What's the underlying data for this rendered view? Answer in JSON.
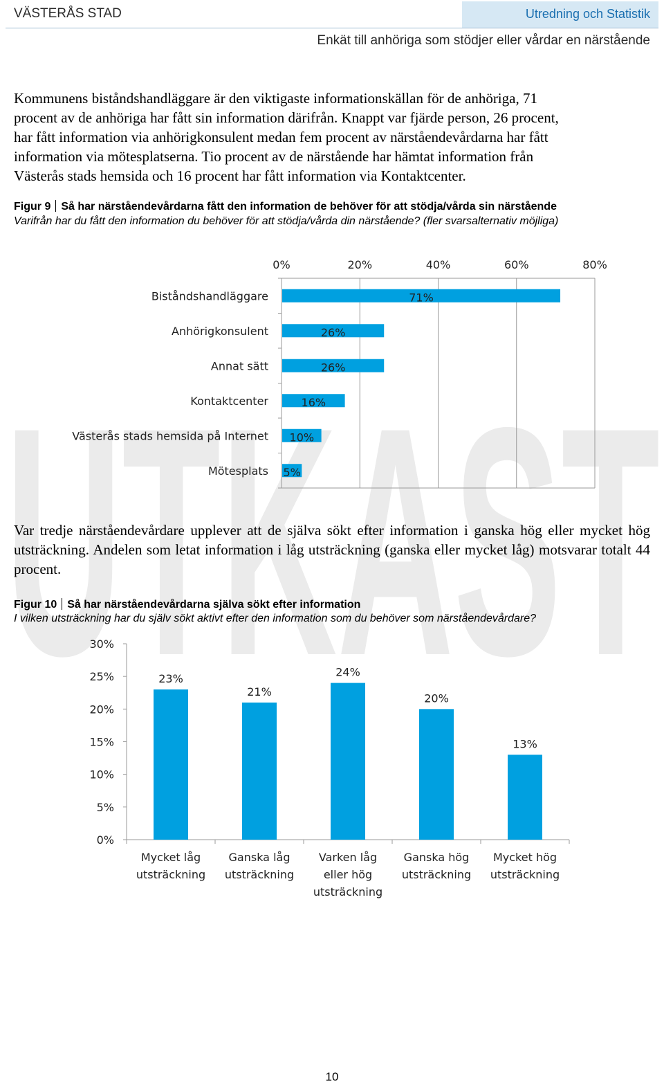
{
  "header": {
    "org": "VÄSTERÅS STAD",
    "unit": "Utredning och Statistik",
    "report": "Enkät till anhöriga som stödjer eller vårdar en närstående"
  },
  "paragraph1": [
    "Kommunens biståndshandläggare är den viktigaste informationskällan för de anhöriga, 71",
    "procent av de anhöriga har fått sin information därifrån. Knappt var fjärde person, 26 procent,",
    "har fått information via anhörigkonsulent medan fem procent av närståendevårdarna har fått",
    "information via mötesplatserna. Tio procent av de närstående har hämtat information från",
    "Västerås stads hemsida och 16 procent har fått information via Kontaktcenter."
  ],
  "figure9": {
    "number": "Figur 9",
    "title": "Så har närståendevårdarna fått den information de behöver för att stödja/vårda sin närstående",
    "subtitle": "Varifrån har du fått den information du behöver för att stödja/vårda din närstående? (fler svarsalternativ möjliga)"
  },
  "paragraph2": "Var tredje närståendevårdare upplever att de själva sökt efter information i ganska hög eller mycket hög utsträckning. Andelen som letat information i låg utsträckning (ganska eller mycket låg) motsvarar totalt 44 procent.",
  "figure10": {
    "number": "Figur 10",
    "title": "Så har närståendevårdarna själva sökt efter information",
    "subtitle": "I vilken utsträckning har du själv sökt aktivt efter den information som du behöver som närståendevårdare?"
  },
  "watermark": "UTKAST",
  "page_number": "10",
  "colors": {
    "bar": "#00a0e0",
    "header_accent": "#1a6fb0",
    "header_box": "#d6e8f4"
  },
  "chart_data": [
    {
      "type": "bar",
      "orientation": "horizontal",
      "categories": [
        "Biståndshandläggare",
        "Anhörigkonsulent",
        "Annat sätt",
        "Kontaktcenter",
        "Västerås stads hemsida på Internet",
        "Mötesplats"
      ],
      "values": [
        71,
        26,
        26,
        16,
        10,
        5
      ],
      "value_labels": [
        "71%",
        "26%",
        "26%",
        "16%",
        "10%",
        "5%"
      ],
      "xlim": [
        0,
        80
      ],
      "x_ticks": [
        0,
        20,
        40,
        60,
        80
      ],
      "x_tick_labels": [
        "0%",
        "20%",
        "40%",
        "60%",
        "80%"
      ],
      "axis_position": "top",
      "grid": true
    },
    {
      "type": "bar",
      "orientation": "vertical",
      "categories": [
        [
          "Mycket låg",
          "utsträckning"
        ],
        [
          "Ganska låg",
          "utsträckning"
        ],
        [
          "Varken låg",
          "eller hög",
          "utsträckning"
        ],
        [
          "Ganska hög",
          "utsträckning"
        ],
        [
          "Mycket hög",
          "utsträckning"
        ]
      ],
      "values": [
        23,
        21,
        24,
        20,
        13
      ],
      "value_labels": [
        "23%",
        "21%",
        "24%",
        "20%",
        "13%"
      ],
      "ylim": [
        0,
        30
      ],
      "y_ticks": [
        0,
        5,
        10,
        15,
        20,
        25,
        30
      ],
      "y_tick_labels": [
        "0%",
        "5%",
        "10%",
        "15%",
        "20%",
        "25%",
        "30%"
      ],
      "grid": false
    }
  ]
}
